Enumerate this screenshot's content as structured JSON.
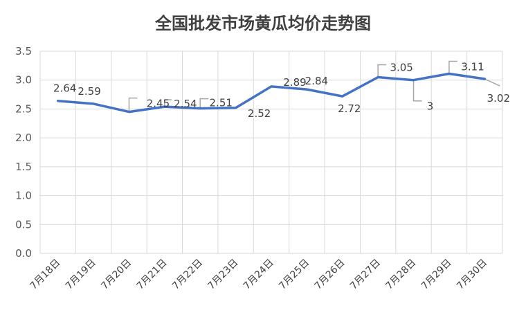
{
  "chart_data": {
    "type": "line",
    "title": "全国批发市场黄瓜均价走势图",
    "xlabel": "",
    "ylabel": "",
    "categories": [
      "7月18日",
      "7月19日",
      "7月20日",
      "7月21日",
      "7月22日",
      "7月23日",
      "7月24日",
      "7月25日",
      "7月26日",
      "7月27日",
      "7月28日",
      "7月29日",
      "7月30日"
    ],
    "series": [
      {
        "values": [
          2.64,
          2.59,
          2.45,
          2.54,
          2.51,
          2.52,
          2.89,
          2.84,
          2.72,
          3.05,
          3.0,
          3.11,
          3.02
        ]
      }
    ],
    "data_labels": [
      "2.64",
      "2.59",
      "2.45",
      "2.54",
      "2.51",
      "2.52",
      "2.89",
      "2.84",
      "2.72",
      "3.05",
      "3",
      "3.11",
      "3.02"
    ],
    "ylim": [
      0,
      3.5
    ],
    "yticks": [
      "0.0",
      "0.5",
      "1.0",
      "1.5",
      "2.0",
      "2.5",
      "3.0",
      "3.5"
    ],
    "grid": true,
    "legend": "none",
    "colors": {
      "line": "#4472C4",
      "grid": "#d9d9d9",
      "leader": "#a6a6a6"
    }
  }
}
